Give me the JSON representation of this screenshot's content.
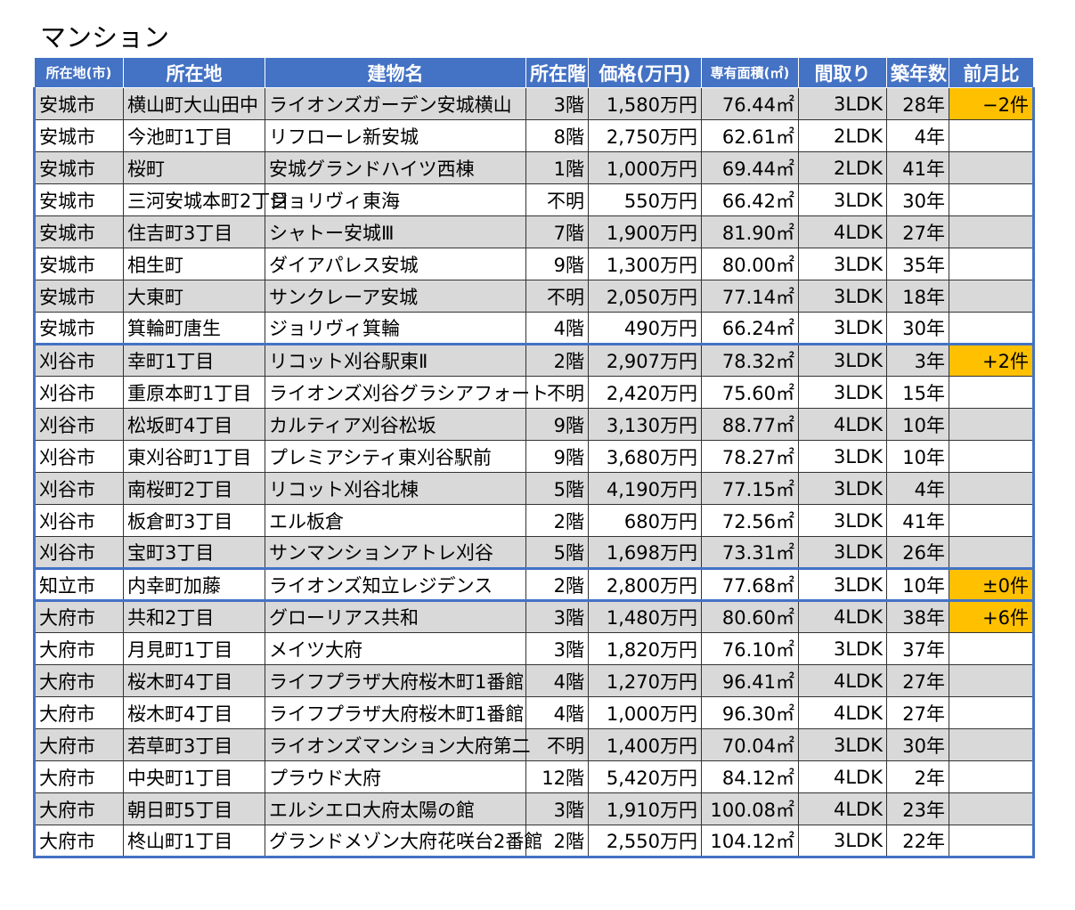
{
  "title": "マンション",
  "headers": [
    "所在地(市)",
    "所在地",
    "建物名",
    "所在階",
    "価格(万円)",
    "専有面積(㎡)",
    "間取り",
    "築年数",
    "前月比"
  ],
  "rows": [
    {
      "city": "安城市",
      "addr": "横山町大山田中",
      "name": "ライオンズガーデン安城横山",
      "floor": "3階",
      "price": "1,580万円",
      "area": "76.44㎡",
      "layout": "3LDK",
      "age": "28年",
      "change": "−2件",
      "shade": true,
      "group_start": true
    },
    {
      "city": "安城市",
      "addr": "今池町1丁目",
      "name": "リフローレ新安城",
      "floor": "8階",
      "price": "2,750万円",
      "area": "62.61㎡",
      "layout": "2LDK",
      "age": "4年",
      "change": "",
      "shade": false,
      "group_start": false
    },
    {
      "city": "安城市",
      "addr": "桜町",
      "name": "安城グランドハイツ西棟",
      "floor": "1階",
      "price": "1,000万円",
      "area": "69.44㎡",
      "layout": "2LDK",
      "age": "41年",
      "change": "",
      "shade": true,
      "group_start": false
    },
    {
      "city": "安城市",
      "addr": "三河安城本町2丁目",
      "name": "ジョリヴィ東海",
      "floor": "不明",
      "price": "550万円",
      "area": "66.42㎡",
      "layout": "3LDK",
      "age": "30年",
      "change": "",
      "shade": false,
      "group_start": false,
      "addr_small": true
    },
    {
      "city": "安城市",
      "addr": "住吉町3丁目",
      "name": "シャトー安城Ⅲ",
      "floor": "7階",
      "price": "1,900万円",
      "area": "81.90㎡",
      "layout": "4LDK",
      "age": "27年",
      "change": "",
      "shade": true,
      "group_start": false
    },
    {
      "city": "安城市",
      "addr": "相生町",
      "name": "ダイアパレス安城",
      "floor": "9階",
      "price": "1,300万円",
      "area": "80.00㎡",
      "layout": "3LDK",
      "age": "35年",
      "change": "",
      "shade": false,
      "group_start": false
    },
    {
      "city": "安城市",
      "addr": "大東町",
      "name": "サンクレーア安城",
      "floor": "不明",
      "price": "2,050万円",
      "area": "77.14㎡",
      "layout": "3LDK",
      "age": "18年",
      "change": "",
      "shade": true,
      "group_start": false
    },
    {
      "city": "安城市",
      "addr": "箕輪町唐生",
      "name": "ジョリヴィ箕輪",
      "floor": "4階",
      "price": "490万円",
      "area": "66.24㎡",
      "layout": "3LDK",
      "age": "30年",
      "change": "",
      "shade": false,
      "group_start": false
    },
    {
      "city": "刈谷市",
      "addr": "幸町1丁目",
      "name": "リコット刈谷駅東Ⅱ",
      "floor": "2階",
      "price": "2,907万円",
      "area": "78.32㎡",
      "layout": "3LDK",
      "age": "3年",
      "change": "+2件",
      "shade": true,
      "group_start": true
    },
    {
      "city": "刈谷市",
      "addr": "重原本町1丁目",
      "name": "ライオンズ刈谷グラシアフォート",
      "floor": "不明",
      "price": "2,420万円",
      "area": "75.60㎡",
      "layout": "3LDK",
      "age": "15年",
      "change": "",
      "shade": false,
      "group_start": false,
      "name_small": true
    },
    {
      "city": "刈谷市",
      "addr": "松坂町4丁目",
      "name": "カルティア刈谷松坂",
      "floor": "9階",
      "price": "3,130万円",
      "area": "88.77㎡",
      "layout": "4LDK",
      "age": "10年",
      "change": "",
      "shade": true,
      "group_start": false
    },
    {
      "city": "刈谷市",
      "addr": "東刈谷町1丁目",
      "name": "プレミアシティ東刈谷駅前",
      "floor": "9階",
      "price": "3,680万円",
      "area": "78.27㎡",
      "layout": "3LDK",
      "age": "10年",
      "change": "",
      "shade": false,
      "group_start": false
    },
    {
      "city": "刈谷市",
      "addr": "南桜町2丁目",
      "name": "リコット刈谷北棟",
      "floor": "5階",
      "price": "4,190万円",
      "area": "77.15㎡",
      "layout": "3LDK",
      "age": "4年",
      "change": "",
      "shade": true,
      "group_start": false
    },
    {
      "city": "刈谷市",
      "addr": "板倉町3丁目",
      "name": "エル板倉",
      "floor": "2階",
      "price": "680万円",
      "area": "72.56㎡",
      "layout": "3LDK",
      "age": "41年",
      "change": "",
      "shade": false,
      "group_start": false
    },
    {
      "city": "刈谷市",
      "addr": "宝町3丁目",
      "name": "サンマンションアトレ刈谷",
      "floor": "5階",
      "price": "1,698万円",
      "area": "73.31㎡",
      "layout": "3LDK",
      "age": "26年",
      "change": "",
      "shade": true,
      "group_start": false
    },
    {
      "city": "知立市",
      "addr": "内幸町加藤",
      "name": "ライオンズ知立レジデンス",
      "floor": "2階",
      "price": "2,800万円",
      "area": "77.68㎡",
      "layout": "3LDK",
      "age": "10年",
      "change": "±0件",
      "shade": false,
      "group_start": true
    },
    {
      "city": "大府市",
      "addr": "共和2丁目",
      "name": "グローリアス共和",
      "floor": "3階",
      "price": "1,480万円",
      "area": "80.60㎡",
      "layout": "4LDK",
      "age": "38年",
      "change": "+6件",
      "shade": true,
      "group_start": true
    },
    {
      "city": "大府市",
      "addr": "月見町1丁目",
      "name": "メイツ大府",
      "floor": "3階",
      "price": "1,820万円",
      "area": "76.10㎡",
      "layout": "3LDK",
      "age": "37年",
      "change": "",
      "shade": false,
      "group_start": false
    },
    {
      "city": "大府市",
      "addr": "桜木町4丁目",
      "name": "ライフプラザ大府桜木町1番館",
      "floor": "4階",
      "price": "1,270万円",
      "area": "96.41㎡",
      "layout": "4LDK",
      "age": "27年",
      "change": "",
      "shade": true,
      "group_start": false
    },
    {
      "city": "大府市",
      "addr": "桜木町4丁目",
      "name": "ライフプラザ大府桜木町1番館",
      "floor": "4階",
      "price": "1,000万円",
      "area": "96.30㎡",
      "layout": "4LDK",
      "age": "27年",
      "change": "",
      "shade": false,
      "group_start": false
    },
    {
      "city": "大府市",
      "addr": "若草町3丁目",
      "name": "ライオンズマンション大府第二",
      "floor": "不明",
      "price": "1,400万円",
      "area": "70.04㎡",
      "layout": "3LDK",
      "age": "30年",
      "change": "",
      "shade": true,
      "group_start": false
    },
    {
      "city": "大府市",
      "addr": "中央町1丁目",
      "name": "プラウド大府",
      "floor": "12階",
      "price": "5,420万円",
      "area": "84.12㎡",
      "layout": "4LDK",
      "age": "2年",
      "change": "",
      "shade": false,
      "group_start": false
    },
    {
      "city": "大府市",
      "addr": "朝日町5丁目",
      "name": "エルシエロ大府太陽の館",
      "floor": "3階",
      "price": "1,910万円",
      "area": "100.08㎡",
      "layout": "4LDK",
      "age": "23年",
      "change": "",
      "shade": true,
      "group_start": false
    },
    {
      "city": "大府市",
      "addr": "柊山町1丁目",
      "name": "グランドメゾン大府花咲台2番館",
      "floor": "2階",
      "price": "2,550万円",
      "area": "104.12㎡",
      "layout": "3LDK",
      "age": "22年",
      "change": "",
      "shade": false,
      "group_start": false,
      "name_small": true
    }
  ],
  "colors": {
    "header_bg": "#4472c4",
    "shade_bg": "#d9d9d9",
    "badge_bg": "#ffc000",
    "border_accent": "#4472c4"
  }
}
